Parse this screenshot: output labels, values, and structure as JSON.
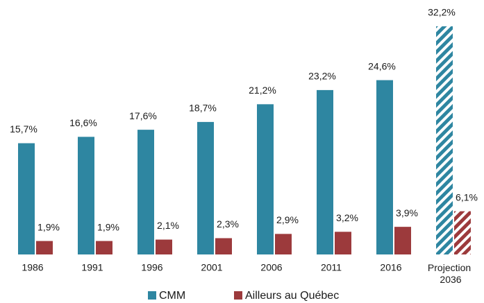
{
  "chart_data": {
    "type": "bar",
    "categories": [
      "1986",
      "1991",
      "1996",
      "2001",
      "2006",
      "2011",
      "2016",
      "Projection 2036"
    ],
    "series": [
      {
        "name": "CMM",
        "color": "#2e86a1",
        "values": [
          15.7,
          16.6,
          17.6,
          18.7,
          21.2,
          23.2,
          24.6,
          32.2
        ],
        "value_labels": [
          "15,7%",
          "16,6%",
          "17,6%",
          "18,7%",
          "21,2%",
          "23,2%",
          "24,6%",
          "32,2%"
        ]
      },
      {
        "name": "Ailleurs au Québec",
        "color": "#9c3a3c",
        "values": [
          1.9,
          1.9,
          2.1,
          2.3,
          2.9,
          3.2,
          3.9,
          6.1
        ],
        "value_labels": [
          "1,9%",
          "1,9%",
          "2,1%",
          "2,3%",
          "2,9%",
          "3,2%",
          "3,9%",
          "6,1%"
        ]
      }
    ],
    "hatched": [
      false,
      false,
      false,
      false,
      false,
      false,
      false,
      true
    ],
    "legend": "bottom",
    "grid": false
  }
}
